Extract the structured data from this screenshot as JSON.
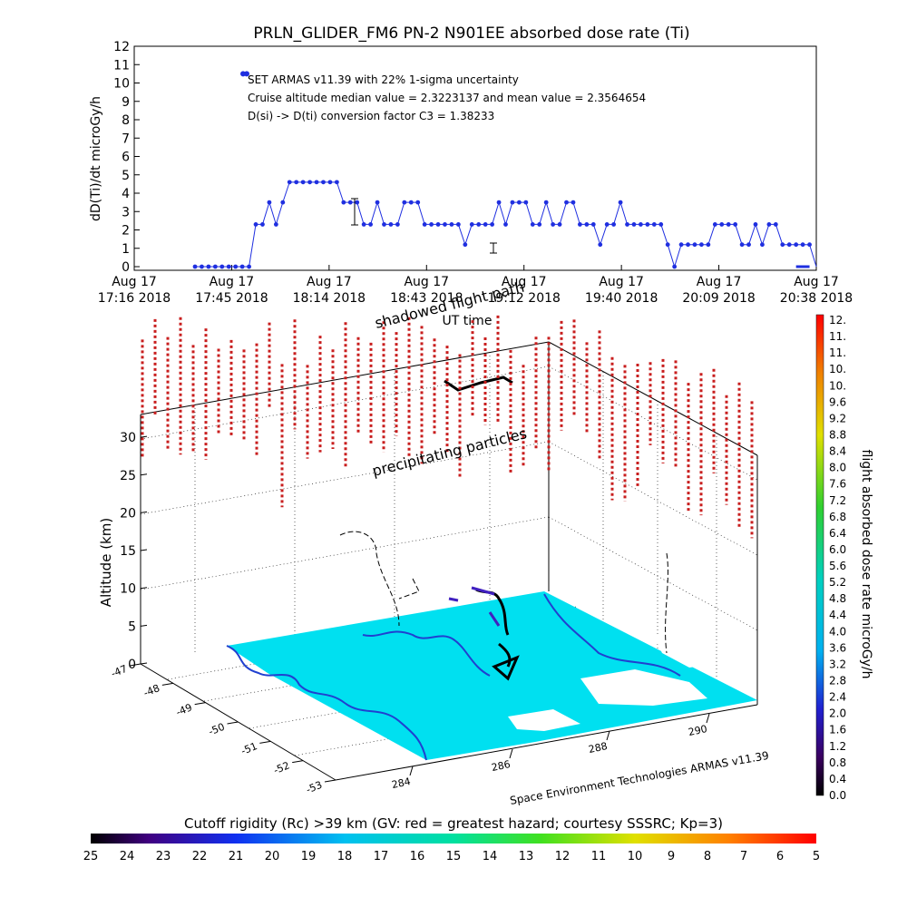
{
  "chart_data": [
    {
      "type": "line",
      "title": "PRLN_GLIDER_FM6 PN-2 N901EE absorbed dose rate (Ti)",
      "ylabel": "dD(Ti)/dt microGy/h",
      "xlabel": "UT time",
      "ylim": [
        0,
        12
      ],
      "y_ticks": [
        "0",
        "1",
        "2",
        "3",
        "4",
        "5",
        "6",
        "7",
        "8",
        "9",
        "10",
        "11",
        "12"
      ],
      "x_ticks": [
        {
          "top": "Aug 17",
          "bottom": "17:16 2018"
        },
        {
          "top": "Aug 17",
          "bottom": "17:45 2018"
        },
        {
          "top": "Aug 17",
          "bottom": "18:14 2018"
        },
        {
          "top": "Aug 17",
          "bottom": "18:43 2018"
        },
        {
          "top": "Aug 17",
          "bottom": "19:12 2018"
        },
        {
          "top": "Aug 17",
          "bottom": "19:40 2018"
        },
        {
          "top": "Aug 17",
          "bottom": "20:09 2018"
        },
        {
          "top": "Aug 17",
          "bottom": "20:38 2018"
        }
      ],
      "x_range_minutes": [
        0,
        202
      ],
      "annotations": [
        "SET ARMAS v11.39 with 22% 1-sigma uncertainty",
        "Cruise altitude median value = 2.3223137 and mean value = 2.3564654",
        "D(si) -> D(ti) conversion factor C3 = 1.38233"
      ],
      "legend_marker_value": 10.5,
      "series_color": "#1f2fe0",
      "x_minutes": [
        18,
        20,
        22,
        24,
        26,
        28,
        30,
        32,
        34,
        36,
        38,
        40,
        42,
        44,
        46,
        48,
        50,
        52,
        54,
        56,
        58,
        60,
        62,
        64,
        66,
        68,
        70,
        72,
        74,
        76,
        78,
        80,
        82,
        84,
        86,
        88,
        90,
        92,
        94,
        96,
        98,
        100,
        102,
        104,
        106,
        108,
        110,
        112,
        114,
        116,
        118,
        120,
        122,
        124,
        126,
        128,
        130,
        132,
        134,
        136,
        138,
        140,
        142,
        144,
        146,
        148,
        150,
        152,
        154,
        156,
        158,
        160,
        162,
        164,
        166,
        168,
        170,
        172,
        174,
        176,
        178,
        180,
        182,
        184,
        186,
        188,
        190,
        192,
        194,
        196,
        198,
        200
      ],
      "values": [
        0,
        0,
        0,
        0,
        0,
        0,
        0,
        0,
        0,
        2.3,
        2.3,
        3.5,
        2.3,
        3.5,
        4.6,
        4.6,
        4.6,
        4.6,
        4.6,
        4.6,
        4.6,
        4.6,
        3.5,
        3.5,
        3.5,
        2.3,
        2.3,
        3.5,
        2.3,
        2.3,
        2.3,
        3.5,
        3.5,
        3.5,
        2.3,
        2.3,
        2.3,
        2.3,
        2.3,
        2.3,
        1.2,
        2.3,
        2.3,
        2.3,
        2.3,
        3.5,
        2.3,
        3.5,
        3.5,
        3.5,
        2.3,
        2.3,
        3.5,
        2.3,
        2.3,
        3.5,
        3.5,
        2.3,
        2.3,
        2.3,
        1.2,
        2.3,
        2.3,
        3.5,
        2.3,
        2.3,
        2.3,
        2.3,
        2.3,
        2.3,
        1.2,
        0,
        1.2,
        1.2,
        1.2,
        1.2,
        1.2,
        2.3,
        2.3,
        2.3,
        2.3,
        1.2,
        1.2,
        2.3,
        1.2,
        2.3,
        2.3,
        1.2,
        1.2,
        1.2,
        1.2,
        1.2
      ]
    },
    {
      "type": "scatter",
      "title": "",
      "zlabel": "Altitude (km)",
      "z_ticks": [
        "0",
        "5",
        "10",
        "15",
        "20",
        "25",
        "30"
      ],
      "zlim": [
        0,
        33
      ],
      "lat_ticks": [
        "-47",
        "-48",
        "-49",
        "-50",
        "-51",
        "-52",
        "-53"
      ],
      "lon_ticks": [
        "284",
        "286",
        "288",
        "290"
      ],
      "annotations": [
        "shadowed flight path",
        "precipitating particles",
        "Space Environment Technologies ARMAS v11.39"
      ],
      "dose_colorbar": {
        "label": "flight absorbed dose rate microGy/h",
        "ticks": [
          "0.0",
          "0.4",
          "0.8",
          "1.2",
          "1.6",
          "2.0",
          "2.4",
          "2.8",
          "3.2",
          "3.6",
          "4.0",
          "4.4",
          "4.8",
          "5.2",
          "5.6",
          "6.0",
          "6.4",
          "6.8",
          "7.2",
          "7.6",
          "8.0",
          "8.4",
          "8.8",
          "9.2",
          "9.6",
          "10.",
          "10.",
          "11.",
          "11.",
          "12."
        ]
      },
      "cutoff_colorbar": {
        "label": "Cutoff rigidity (Rc) >39 km (GV: red = greatest hazard; courtesy SSSRC; Kp=3)",
        "ticks": [
          "25",
          "24",
          "23",
          "22",
          "21",
          "20",
          "19",
          "18",
          "17",
          "16",
          "15",
          "14",
          "13",
          "12",
          "11",
          "10",
          "9",
          "8",
          "7",
          "6",
          "5"
        ]
      },
      "colors": {
        "sea": "#00e0f0",
        "coast": "#2040d0",
        "particles": "#c81e1e",
        "flight": "#000000"
      }
    }
  ]
}
